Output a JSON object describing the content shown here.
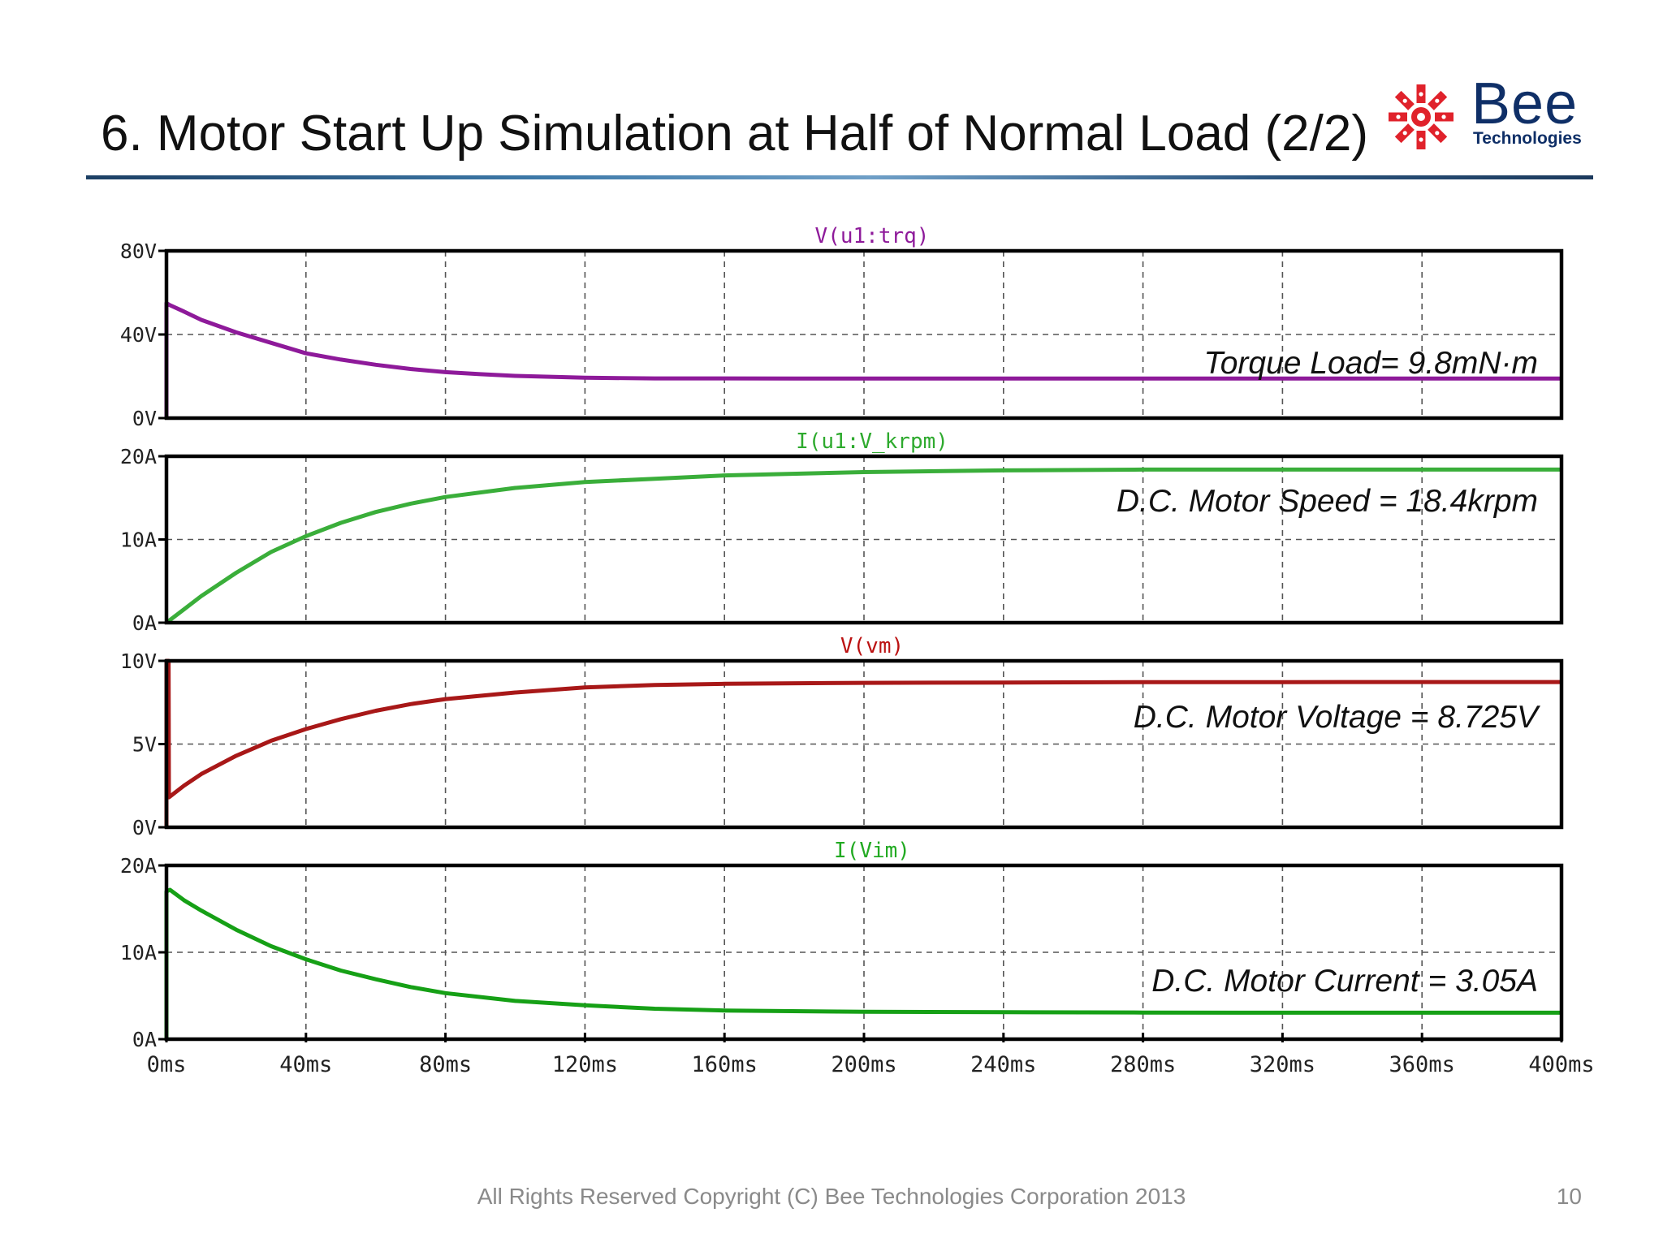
{
  "slide": {
    "title": "6. Motor Start Up Simulation at Half of Normal Load (2/2)",
    "footer": "All Rights Reserved Copyright (C) Bee Technologies Corporation 2013",
    "page_number": "10",
    "logo": {
      "name": "Bee",
      "subtitle": "Technologies",
      "mark_color": "#e0222b",
      "text_color": "#0f2f67"
    }
  },
  "chart_data": {
    "type": "line",
    "shared_x": {
      "min": 0,
      "max": 400,
      "unit": "ms",
      "tick_labels": [
        "0ms",
        "40ms",
        "80ms",
        "120ms",
        "160ms",
        "200ms",
        "240ms",
        "280ms",
        "320ms",
        "360ms",
        "400ms"
      ]
    },
    "grid": true,
    "panels": [
      {
        "title": "V(u1:trq)",
        "title_color": "#8e1a9a",
        "color": "#8e1a9a",
        "ylim": [
          0,
          80
        ],
        "y_ticks": [
          0,
          40,
          80
        ],
        "y_tick_labels": [
          "0V",
          "40V",
          "80V"
        ],
        "annotation": "Torque Load= 9.8mN·m",
        "x": [
          0,
          0,
          1,
          5,
          10,
          20,
          30,
          40,
          50,
          60,
          70,
          80,
          90,
          100,
          120,
          140,
          160,
          180,
          200,
          240,
          280,
          320,
          360,
          400
        ],
        "y": [
          0,
          55,
          54,
          51,
          47,
          41,
          36,
          31,
          28,
          25.5,
          23.5,
          22,
          21,
          20.2,
          19.3,
          19,
          19,
          18.9,
          18.9,
          18.9,
          18.9,
          18.9,
          18.9,
          18.9
        ]
      },
      {
        "title": "I(u1:V_krpm)",
        "title_color": "#2eaa2e",
        "color": "#3aae3a",
        "ylim": [
          0,
          20
        ],
        "y_ticks": [
          0,
          10,
          20
        ],
        "y_tick_labels": [
          "0A",
          "10A",
          "20A"
        ],
        "annotation": "D.C. Motor Speed = 18.4krpm",
        "x": [
          0,
          5,
          10,
          20,
          30,
          40,
          50,
          60,
          70,
          80,
          100,
          120,
          140,
          160,
          200,
          240,
          280,
          320,
          360,
          400
        ],
        "y": [
          0,
          1.6,
          3.2,
          6.0,
          8.5,
          10.4,
          12.0,
          13.3,
          14.3,
          15.1,
          16.2,
          16.9,
          17.3,
          17.7,
          18.1,
          18.3,
          18.4,
          18.4,
          18.4,
          18.4
        ]
      },
      {
        "title": "V(vm)",
        "title_color": "#bb1111",
        "color": "#a81818",
        "ylim": [
          0,
          10
        ],
        "y_ticks": [
          0,
          5,
          10
        ],
        "y_tick_labels": [
          "0V",
          "5V",
          "10V"
        ],
        "annotation": "D.C. Motor Voltage = 8.725V",
        "x": [
          0,
          0,
          0.6,
          0.7,
          5,
          10,
          20,
          30,
          40,
          50,
          60,
          70,
          80,
          100,
          120,
          140,
          160,
          200,
          240,
          280,
          320,
          360,
          400
        ],
        "y": [
          0,
          10,
          10,
          1.8,
          2.5,
          3.2,
          4.3,
          5.2,
          5.9,
          6.5,
          7.0,
          7.4,
          7.7,
          8.1,
          8.4,
          8.55,
          8.62,
          8.68,
          8.7,
          8.72,
          8.72,
          8.725,
          8.725
        ]
      },
      {
        "title": "I(Vim)",
        "title_color": "#22aa22",
        "color": "#16a016",
        "ylim": [
          0,
          20
        ],
        "y_ticks": [
          0,
          10,
          20
        ],
        "y_tick_labels": [
          "0A",
          "10A",
          "20A"
        ],
        "annotation": "D.C. Motor Current = 3.05A",
        "x": [
          0,
          0,
          1,
          5,
          10,
          20,
          30,
          40,
          50,
          60,
          70,
          80,
          100,
          120,
          140,
          160,
          200,
          240,
          280,
          320,
          360,
          400
        ],
        "y": [
          0,
          17,
          17.2,
          16,
          14.8,
          12.6,
          10.7,
          9.2,
          7.9,
          6.9,
          6.0,
          5.3,
          4.4,
          3.9,
          3.5,
          3.3,
          3.15,
          3.1,
          3.07,
          3.05,
          3.05,
          3.05
        ]
      }
    ]
  }
}
